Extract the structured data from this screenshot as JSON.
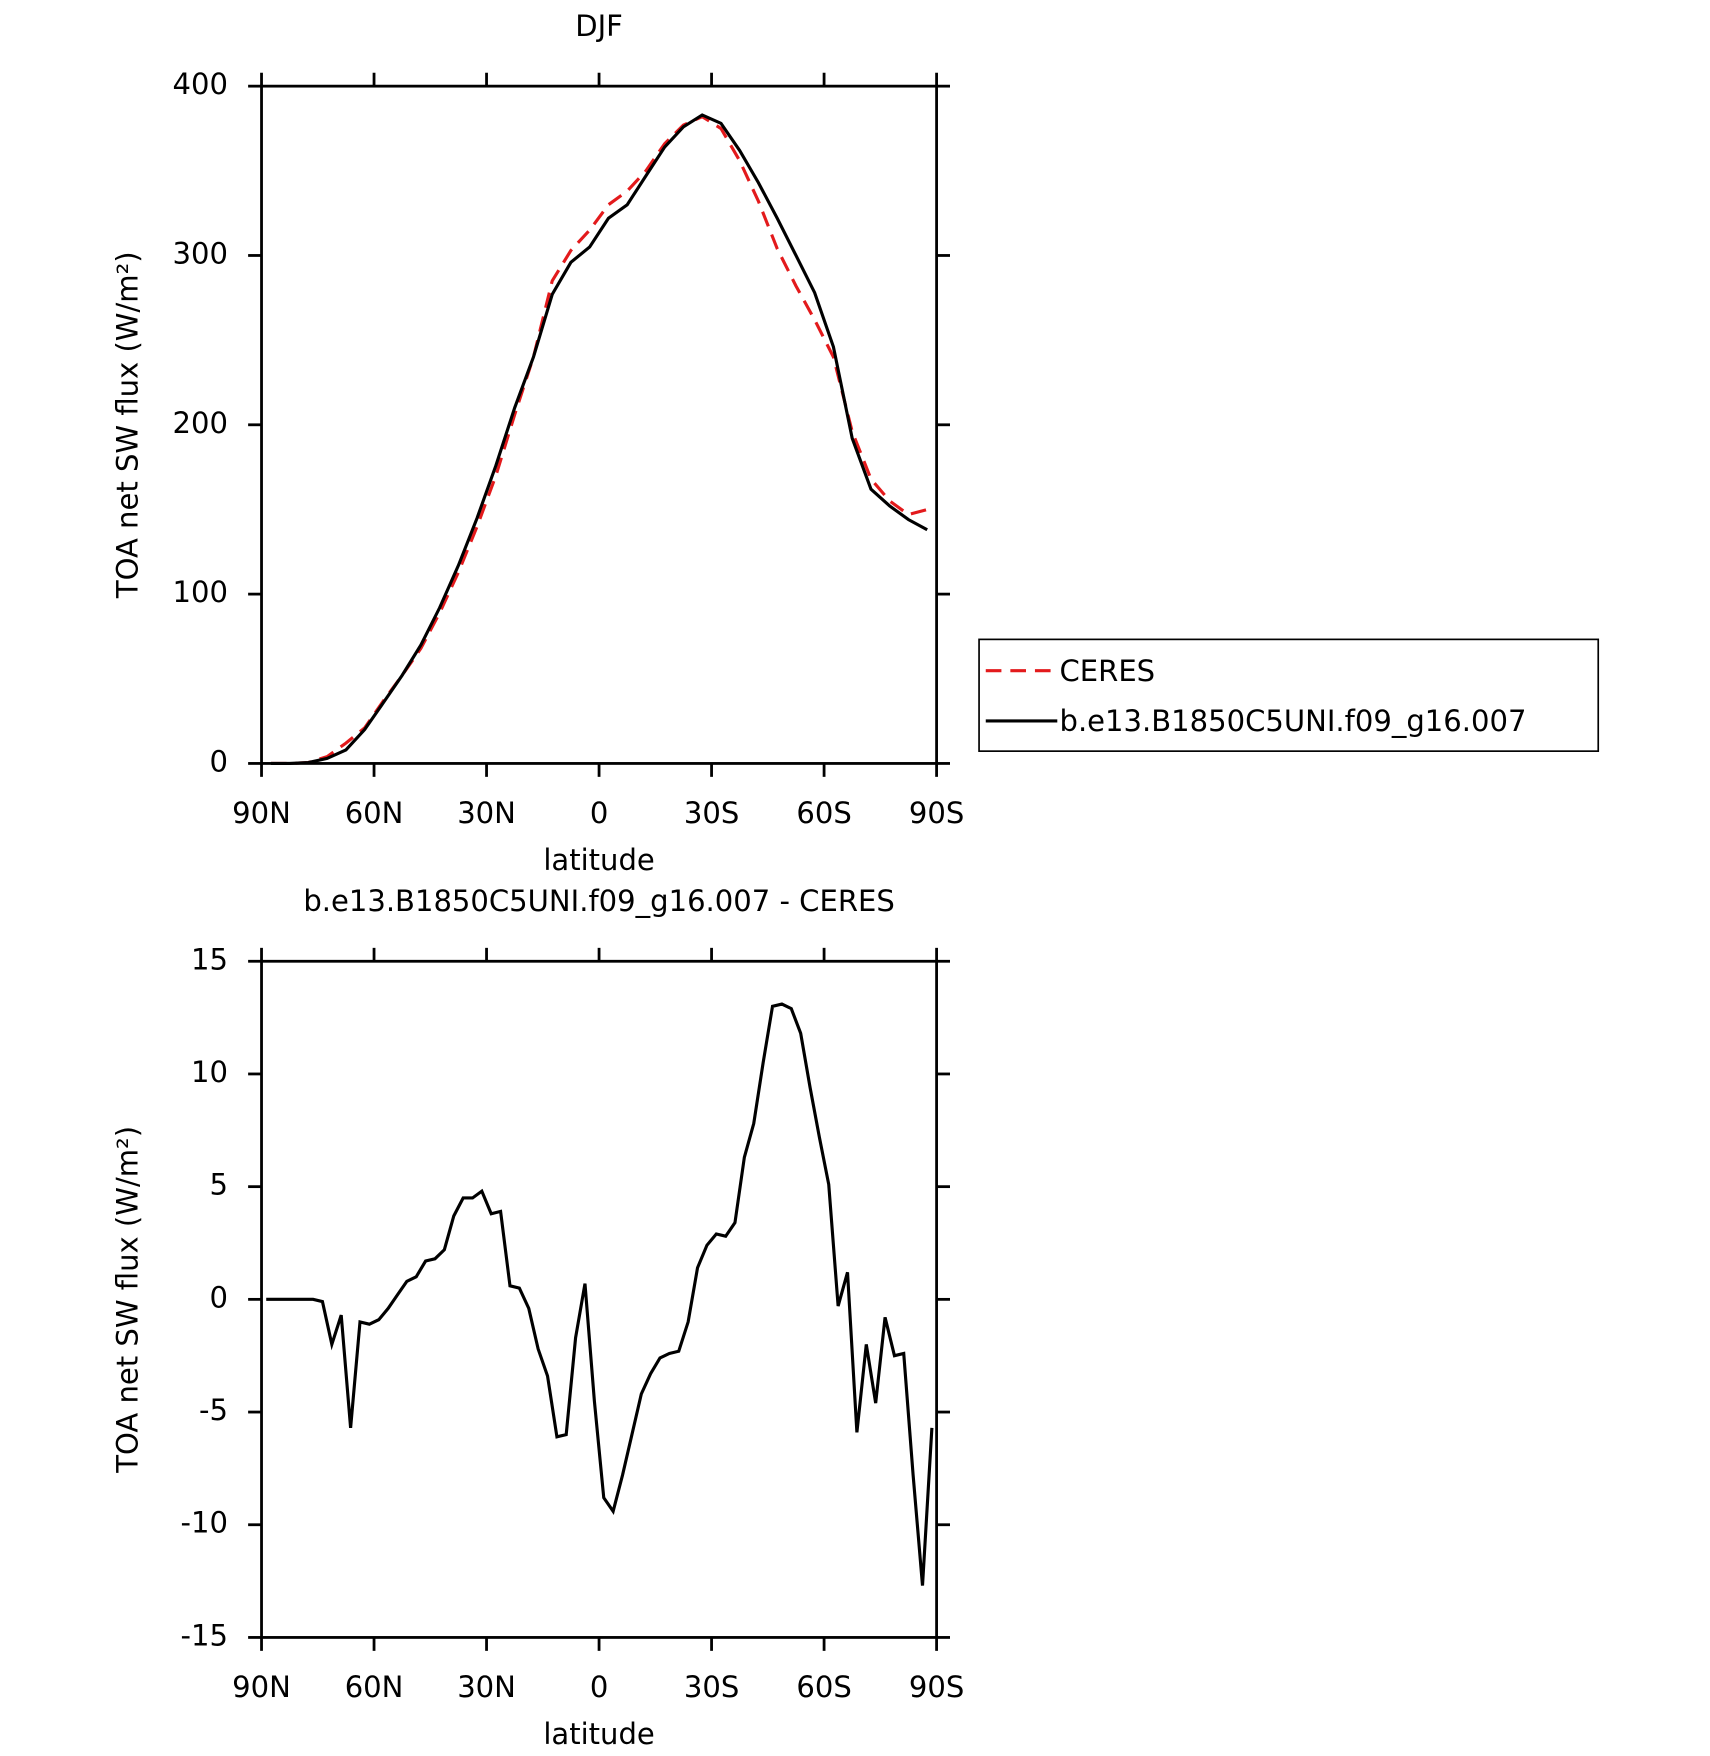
{
  "chart_data": [
    {
      "type": "line",
      "title": "DJF",
      "xlabel": "latitude",
      "ylabel": "TOA net SW flux (W/m²)",
      "xlim": [
        90,
        -90
      ],
      "xticks": [
        {
          "value": 90,
          "label": "90N"
        },
        {
          "value": 60,
          "label": "60N"
        },
        {
          "value": 30,
          "label": "30N"
        },
        0,
        {
          "value": -30,
          "label": "30S"
        },
        {
          "value": -60,
          "label": "60S"
        },
        {
          "value": -90,
          "label": "90S"
        }
      ],
      "ylim": [
        0,
        400
      ],
      "yticks": [
        0,
        100,
        200,
        300,
        400
      ],
      "legend": "right",
      "x": [
        87.5,
        82.5,
        77.5,
        72.5,
        67.5,
        62.5,
        57.5,
        52.5,
        47.5,
        42.5,
        37.5,
        32.5,
        27.5,
        22.5,
        17.5,
        12.5,
        7.5,
        2.5,
        -2.5,
        -7.5,
        -12.5,
        -17.5,
        -22.5,
        -27.5,
        -32.5,
        -37.5,
        -42.5,
        -47.5,
        -52.5,
        -57.5,
        -62.5,
        -67.5,
        -72.5,
        -77.5,
        -82.5,
        -87.5
      ],
      "series": [
        {
          "name": "CERES",
          "color": "#e31a1c",
          "linestyle": "dashed",
          "values": [
            0,
            0,
            0.5,
            4,
            12,
            21,
            37,
            52,
            68,
            89,
            113,
            140,
            170,
            206,
            240,
            285,
            303,
            315,
            330,
            338,
            350,
            366,
            377,
            382,
            375,
            356,
            332,
            304,
            282,
            262,
            240,
            196,
            168,
            155,
            147,
            150
          ]
        },
        {
          "name": "b.e13.B1850C5UNI.f09_g16.007",
          "color": "#000000",
          "linestyle": "solid",
          "values": [
            0,
            0,
            0.5,
            3,
            8,
            20,
            36,
            52,
            70,
            92,
            117,
            145,
            176,
            210,
            240,
            277,
            296,
            305,
            322,
            330,
            347,
            364,
            376,
            383,
            378,
            362,
            343,
            322,
            300,
            278,
            246,
            192,
            162,
            152,
            144,
            138
          ]
        }
      ]
    },
    {
      "type": "line",
      "title": "b.e13.B1850C5UNI.f09_g16.007 - CERES",
      "xlabel": "latitude",
      "ylabel": "TOA net SW flux (W/m²)",
      "xlim": [
        90,
        -90
      ],
      "xticks": [
        {
          "value": 90,
          "label": "90N"
        },
        {
          "value": 60,
          "label": "60N"
        },
        {
          "value": 30,
          "label": "30N"
        },
        0,
        {
          "value": -30,
          "label": "30S"
        },
        {
          "value": -60,
          "label": "60S"
        },
        {
          "value": -90,
          "label": "90S"
        }
      ],
      "ylim": [
        -15,
        15
      ],
      "yticks": [
        -15,
        -10,
        -5,
        0,
        5,
        10,
        15
      ],
      "x": [
        88.75,
        86.25,
        83.75,
        81.25,
        78.75,
        76.25,
        73.75,
        71.25,
        68.75,
        66.25,
        63.75,
        61.25,
        58.75,
        56.25,
        53.75,
        51.25,
        48.75,
        46.25,
        43.75,
        41.25,
        38.75,
        36.25,
        33.75,
        31.25,
        28.75,
        26.25,
        23.75,
        21.25,
        18.75,
        16.25,
        13.75,
        11.25,
        8.75,
        6.25,
        3.75,
        1.25,
        -1.25,
        -3.75,
        -6.25,
        -8.75,
        -11.25,
        -13.75,
        -16.25,
        -18.75,
        -21.25,
        -23.75,
        -26.25,
        -28.75,
        -31.25,
        -33.75,
        -36.25,
        -38.75,
        -41.25,
        -43.75,
        -46.25,
        -48.75,
        -51.25,
        -53.75,
        -56.25,
        -58.75,
        -61.25,
        -63.75,
        -66.25,
        -68.75,
        -71.25,
        -73.75,
        -76.25,
        -78.75,
        -81.25,
        -83.75,
        -86.25,
        -88.75
      ],
      "series": [
        {
          "color": "#000000",
          "linestyle": "solid",
          "values": [
            0,
            0,
            0,
            0,
            0,
            0,
            -0.1,
            -2,
            -0.7,
            -5.7,
            -1,
            -1.1,
            -0.9,
            -0.4,
            0.2,
            0.8,
            1.0,
            1.7,
            1.8,
            2.2,
            3.7,
            4.5,
            4.5,
            4.8,
            3.8,
            3.9,
            0.6,
            0.5,
            -0.4,
            -2.2,
            -3.4,
            -6.1,
            -6.0,
            -1.7,
            0.7,
            -4.5,
            -8.8,
            -9.4,
            -7.8,
            -6,
            -4.2,
            -3.3,
            -2.6,
            -2.4,
            -2.3,
            -1,
            1.4,
            2.4,
            2.9,
            2.8,
            3.4,
            6.3,
            7.8,
            10.5,
            13,
            13.1,
            12.9,
            11.8,
            9.4,
            7.2,
            5.1,
            -0.3,
            1.2,
            -5.9,
            -2,
            -4.6,
            -0.8,
            -2.5,
            -2.4,
            -7.8,
            -12.7,
            -5.7
          ]
        }
      ]
    }
  ]
}
